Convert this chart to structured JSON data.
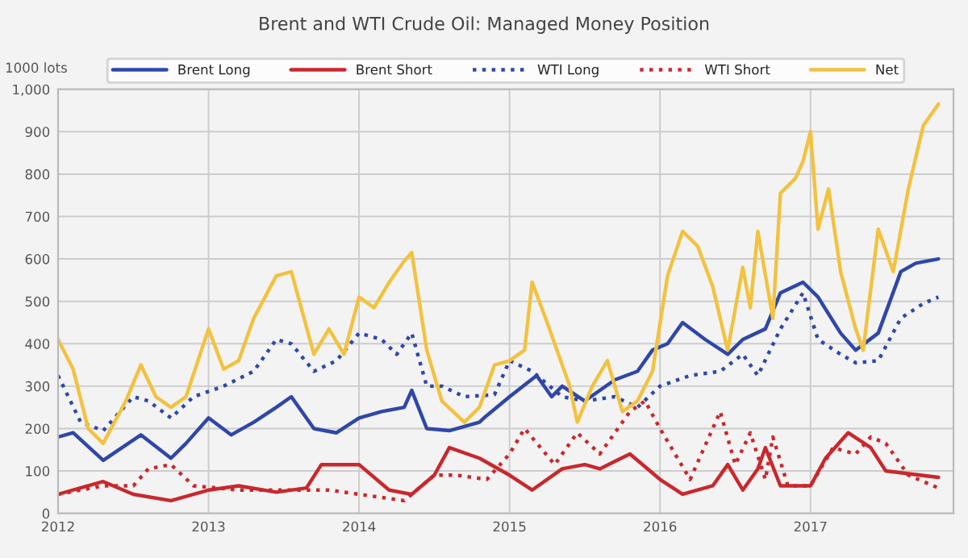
{
  "chart_data": {
    "type": "line",
    "title": "Brent and WTI Crude Oil: Managed Money Position",
    "ylabel": "1000 lots",
    "xlim": [
      2012,
      2017.95
    ],
    "xticks": [
      {
        "value": 2012,
        "label": "2012"
      },
      {
        "value": 2013,
        "label": "2013"
      },
      {
        "value": 2014,
        "label": "2014"
      },
      {
        "value": 2015,
        "label": "2015"
      },
      {
        "value": 2016,
        "label": "2016"
      },
      {
        "value": 2017,
        "label": "2017"
      }
    ],
    "ylim": [
      0,
      1000
    ],
    "yticks": [
      0,
      100,
      200,
      300,
      400,
      500,
      600,
      700,
      800,
      900,
      {
        "value": 1000,
        "label": "1,000"
      }
    ],
    "grid": true,
    "legend": "top",
    "marker": "none",
    "series": [
      {
        "name": "Brent Long",
        "color": "#2f47a8",
        "line_style": "solid",
        "x": [
          2012.0,
          2012.1,
          2012.3,
          2012.55,
          2012.75,
          2012.85,
          2013.0,
          2013.15,
          2013.3,
          2013.45,
          2013.55,
          2013.7,
          2013.85,
          2014.0,
          2014.15,
          2014.3,
          2014.35,
          2014.45,
          2014.6,
          2014.8,
          2014.83,
          2015.0,
          2015.18,
          2015.28,
          2015.35,
          2015.5,
          2015.7,
          2015.85,
          2015.95,
          2016.05,
          2016.15,
          2016.3,
          2016.45,
          2016.55,
          2016.7,
          2016.8,
          2016.95,
          2017.05,
          2017.2,
          2017.3,
          2017.45,
          2017.6,
          2017.7,
          2017.85
        ],
        "values": [
          180,
          190,
          125,
          185,
          130,
          165,
          225,
          185,
          215,
          250,
          275,
          200,
          190,
          225,
          240,
          250,
          290,
          200,
          195,
          215,
          225,
          275,
          325,
          275,
          300,
          265,
          315,
          335,
          385,
          400,
          450,
          410,
          375,
          410,
          435,
          520,
          545,
          510,
          425,
          385,
          425,
          570,
          590,
          600
        ]
      },
      {
        "name": "Brent Short",
        "color": "#c9282d",
        "line_style": "solid",
        "x": [
          2012.0,
          2012.2,
          2012.3,
          2012.5,
          2012.75,
          2013.0,
          2013.2,
          2013.45,
          2013.65,
          2013.75,
          2014.0,
          2014.2,
          2014.35,
          2014.5,
          2014.6,
          2014.8,
          2015.0,
          2015.15,
          2015.35,
          2015.5,
          2015.6,
          2015.8,
          2016.0,
          2016.15,
          2016.35,
          2016.45,
          2016.55,
          2016.65,
          2016.7,
          2016.8,
          2017.0,
          2017.1,
          2017.25,
          2017.4,
          2017.5,
          2017.85
        ],
        "values": [
          45,
          65,
          75,
          45,
          30,
          55,
          65,
          50,
          60,
          115,
          115,
          55,
          45,
          90,
          155,
          130,
          90,
          55,
          105,
          115,
          105,
          140,
          80,
          45,
          65,
          115,
          55,
          105,
          155,
          65,
          65,
          130,
          190,
          155,
          100,
          85
        ]
      },
      {
        "name": "WTI Long",
        "color": "#2f47a8",
        "line_style": "dotted",
        "x": [
          2012.0,
          2012.15,
          2012.3,
          2012.5,
          2012.6,
          2012.75,
          2012.9,
          2013.1,
          2013.3,
          2013.45,
          2013.55,
          2013.7,
          2013.85,
          2014.0,
          2014.15,
          2014.25,
          2014.35,
          2014.45,
          2014.55,
          2014.7,
          2014.9,
          2015.0,
          2015.15,
          2015.35,
          2015.5,
          2015.7,
          2015.85,
          2016.0,
          2016.2,
          2016.4,
          2016.55,
          2016.65,
          2016.8,
          2016.95,
          2017.05,
          2017.2,
          2017.3,
          2017.45,
          2017.6,
          2017.75,
          2017.85
        ],
        "values": [
          325,
          215,
          195,
          275,
          265,
          225,
          275,
          300,
          335,
          410,
          400,
          335,
          360,
          425,
          410,
          375,
          425,
          300,
          300,
          275,
          280,
          360,
          335,
          275,
          265,
          275,
          250,
          300,
          325,
          335,
          375,
          325,
          435,
          520,
          410,
          375,
          355,
          360,
          460,
          495,
          510
        ]
      },
      {
        "name": "WTI Short",
        "color": "#c9282d",
        "line_style": "dotted",
        "x": [
          2012.0,
          2012.3,
          2012.5,
          2012.6,
          2012.75,
          2012.9,
          2013.2,
          2013.5,
          2013.8,
          2014.0,
          2014.3,
          2014.5,
          2014.65,
          2014.85,
          2015.0,
          2015.1,
          2015.3,
          2015.45,
          2015.6,
          2015.8,
          2015.9,
          2016.0,
          2016.2,
          2016.4,
          2016.5,
          2016.6,
          2016.7,
          2016.75,
          2016.85,
          2017.0,
          2017.15,
          2017.3,
          2017.4,
          2017.5,
          2017.65,
          2017.85
        ],
        "values": [
          45,
          65,
          65,
          105,
          115,
          65,
          55,
          55,
          55,
          45,
          30,
          90,
          90,
          80,
          140,
          200,
          115,
          190,
          140,
          240,
          265,
          200,
          80,
          240,
          115,
          190,
          80,
          180,
          65,
          65,
          155,
          140,
          180,
          165,
          90,
          60
        ]
      },
      {
        "name": "Net",
        "color": "#f2c240",
        "line_style": "solid",
        "x": [
          2012.0,
          2012.1,
          2012.2,
          2012.3,
          2012.45,
          2012.55,
          2012.65,
          2012.75,
          2012.85,
          2013.0,
          2013.1,
          2013.2,
          2013.3,
          2013.45,
          2013.55,
          2013.7,
          2013.8,
          2013.9,
          2014.0,
          2014.1,
          2014.2,
          2014.3,
          2014.35,
          2014.45,
          2014.55,
          2014.7,
          2014.8,
          2014.9,
          2015.0,
          2015.1,
          2015.15,
          2015.25,
          2015.4,
          2015.45,
          2015.55,
          2015.65,
          2015.75,
          2015.85,
          2015.95,
          2016.05,
          2016.15,
          2016.25,
          2016.35,
          2016.45,
          2016.55,
          2016.6,
          2016.65,
          2016.75,
          2016.8,
          2016.9,
          2016.95,
          2017.0,
          2017.05,
          2017.12,
          2017.2,
          2017.3,
          2017.35,
          2017.45,
          2017.55,
          2017.65,
          2017.75,
          2017.85
        ],
        "values": [
          410,
          340,
          200,
          165,
          265,
          350,
          275,
          250,
          275,
          435,
          340,
          360,
          460,
          560,
          570,
          375,
          435,
          375,
          510,
          485,
          545,
          595,
          615,
          385,
          265,
          215,
          250,
          350,
          360,
          385,
          545,
          450,
          300,
          215,
          300,
          360,
          240,
          265,
          335,
          560,
          665,
          630,
          535,
          385,
          580,
          485,
          665,
          460,
          755,
          790,
          830,
          900,
          670,
          765,
          570,
          435,
          385,
          670,
          570,
          765,
          915,
          965
        ]
      }
    ]
  }
}
